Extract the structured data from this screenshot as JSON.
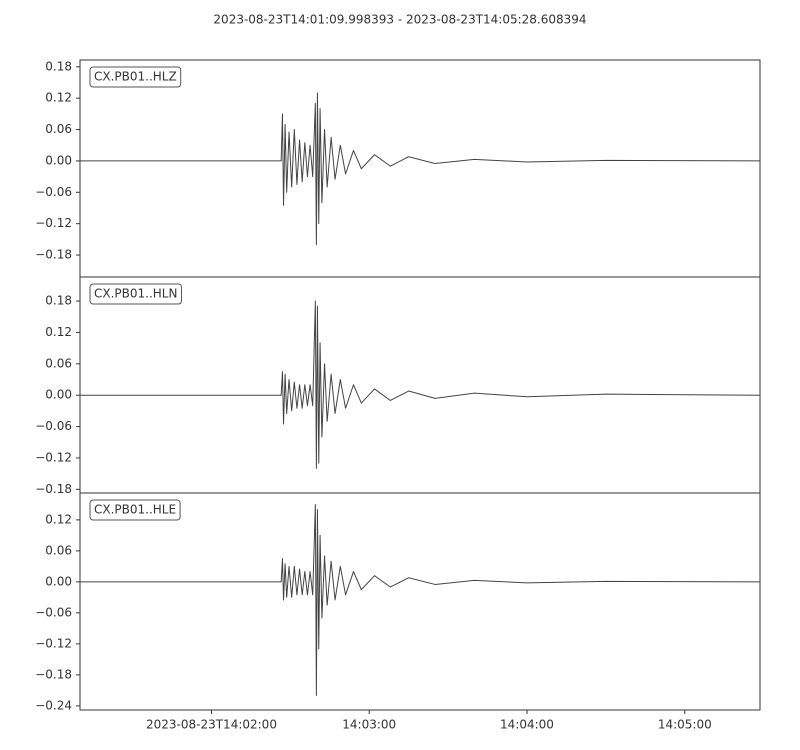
{
  "chart_data": [
    {
      "type": "line",
      "title": "2023-08-23T14:01:09.998393  -  2023-08-23T14:05:28.608394",
      "label": "CX.PB01..HLZ",
      "xlim": [
        "2023-08-23T14:01:09.998393",
        "2023-08-23T14:05:28.608394"
      ],
      "ylim": [
        -0.222,
        0.193
      ],
      "yticks": [
        {
          "value": -0.18,
          "label": "−0.18"
        },
        {
          "value": -0.12,
          "label": "−0.12"
        },
        {
          "value": -0.06,
          "label": "−0.06"
        },
        {
          "value": 0,
          "label": "0.00"
        },
        {
          "value": 0.06,
          "label": "0.06"
        },
        {
          "value": 0.12,
          "label": "0.12"
        },
        {
          "value": 0.18,
          "label": "0.18"
        }
      ],
      "series": [
        {
          "color": "#444444",
          "x": [
            "2023-08-23T14:01:10",
            "2023-08-23T14:02:26.5",
            "2023-08-23T14:02:27",
            "2023-08-23T14:02:27.4",
            "2023-08-23T14:02:28",
            "2023-08-23T14:02:28.6",
            "2023-08-23T14:02:29.5",
            "2023-08-23T14:02:30.5",
            "2023-08-23T14:02:31.5",
            "2023-08-23T14:02:32.5",
            "2023-08-23T14:02:33.5",
            "2023-08-23T14:02:34.5",
            "2023-08-23T14:02:35.5",
            "2023-08-23T14:02:36.5",
            "2023-08-23T14:02:37.5",
            "2023-08-23T14:02:38.5",
            "2023-08-23T14:02:39.5",
            "2023-08-23T14:02:39.9",
            "2023-08-23T14:02:40.3",
            "2023-08-23T14:02:40.8",
            "2023-08-23T14:02:41.3",
            "2023-08-23T14:02:42",
            "2023-08-23T14:02:43",
            "2023-08-23T14:02:44",
            "2023-08-23T14:02:45.5",
            "2023-08-23T14:02:47",
            "2023-08-23T14:02:49",
            "2023-08-23T14:02:51",
            "2023-08-23T14:02:54",
            "2023-08-23T14:02:57",
            "2023-08-23T14:03:02",
            "2023-08-23T14:03:08",
            "2023-08-23T14:03:15",
            "2023-08-23T14:03:25",
            "2023-08-23T14:03:40",
            "2023-08-23T14:04:00",
            "2023-08-23T14:04:30",
            "2023-08-23T14:05:28.6"
          ],
          "values": [
            0,
            0,
            0.09,
            -0.085,
            0.07,
            -0.06,
            0.055,
            -0.05,
            0.06,
            -0.045,
            0.04,
            -0.04,
            0.035,
            -0.03,
            0.03,
            -0.03,
            0.11,
            -0.16,
            0.13,
            -0.12,
            0.1,
            -0.08,
            0.06,
            -0.05,
            0.045,
            -0.035,
            0.03,
            -0.025,
            0.02,
            -0.015,
            0.012,
            -0.01,
            0.008,
            -0.005,
            0.003,
            -0.002,
            0.001,
            0
          ]
        }
      ]
    },
    {
      "type": "line",
      "label": "CX.PB01..HLN",
      "xlim": [
        "2023-08-23T14:01:09.998393",
        "2023-08-23T14:05:28.608394"
      ],
      "ylim": [
        -0.187,
        0.226
      ],
      "yticks": [
        {
          "value": -0.18,
          "label": "−0.18"
        },
        {
          "value": -0.12,
          "label": "−0.12"
        },
        {
          "value": -0.06,
          "label": "−0.06"
        },
        {
          "value": 0,
          "label": "0.00"
        },
        {
          "value": 0.06,
          "label": "0.06"
        },
        {
          "value": 0.12,
          "label": "0.12"
        },
        {
          "value": 0.18,
          "label": "0.18"
        }
      ],
      "series": [
        {
          "color": "#444444",
          "x": [
            "2023-08-23T14:01:10",
            "2023-08-23T14:02:26.5",
            "2023-08-23T14:02:27",
            "2023-08-23T14:02:27.4",
            "2023-08-23T14:02:28",
            "2023-08-23T14:02:28.6",
            "2023-08-23T14:02:29.5",
            "2023-08-23T14:02:30.5",
            "2023-08-23T14:02:31.5",
            "2023-08-23T14:02:32.5",
            "2023-08-23T14:02:33.5",
            "2023-08-23T14:02:34.5",
            "2023-08-23T14:02:35.5",
            "2023-08-23T14:02:36.5",
            "2023-08-23T14:02:37.5",
            "2023-08-23T14:02:38.5",
            "2023-08-23T14:02:39.5",
            "2023-08-23T14:02:39.9",
            "2023-08-23T14:02:40.3",
            "2023-08-23T14:02:40.8",
            "2023-08-23T14:02:41.3",
            "2023-08-23T14:02:42",
            "2023-08-23T14:02:43",
            "2023-08-23T14:02:44",
            "2023-08-23T14:02:45.5",
            "2023-08-23T14:02:47",
            "2023-08-23T14:02:49",
            "2023-08-23T14:02:51",
            "2023-08-23T14:02:54",
            "2023-08-23T14:02:57",
            "2023-08-23T14:03:02",
            "2023-08-23T14:03:08",
            "2023-08-23T14:03:15",
            "2023-08-23T14:03:25",
            "2023-08-23T14:03:40",
            "2023-08-23T14:04:00",
            "2023-08-23T14:04:30",
            "2023-08-23T14:05:28.6"
          ],
          "values": [
            0,
            0,
            0.045,
            -0.055,
            0.04,
            -0.035,
            0.03,
            -0.03,
            0.025,
            -0.025,
            0.02,
            -0.025,
            0.02,
            -0.02,
            0.02,
            -0.02,
            0.18,
            -0.14,
            0.17,
            -0.13,
            0.1,
            -0.08,
            0.06,
            -0.05,
            0.04,
            -0.035,
            0.03,
            -0.025,
            0.02,
            -0.015,
            0.012,
            -0.01,
            0.008,
            -0.006,
            0.004,
            -0.003,
            0.002,
            0
          ]
        }
      ]
    },
    {
      "type": "line",
      "label": "CX.PB01..HLE",
      "xlim": [
        "2023-08-23T14:01:09.998393",
        "2023-08-23T14:05:28.608394"
      ],
      "ylim": [
        -0.248,
        0.172
      ],
      "yticks": [
        {
          "value": -0.24,
          "label": "−0.24"
        },
        {
          "value": -0.18,
          "label": "−0.18"
        },
        {
          "value": -0.12,
          "label": "−0.12"
        },
        {
          "value": -0.06,
          "label": "−0.06"
        },
        {
          "value": 0,
          "label": "0.00"
        },
        {
          "value": 0.06,
          "label": "0.06"
        },
        {
          "value": 0.12,
          "label": "0.12"
        }
      ],
      "xticks": [
        "2023-08-23T14:02:00",
        {
          "value": "2023-08-23T14:03:00",
          "label": "14:03:00"
        },
        {
          "value": "2023-08-23T14:04:00",
          "label": "14:04:00"
        },
        {
          "value": "2023-08-23T14:05:00",
          "label": "14:05:00"
        }
      ],
      "series": [
        {
          "color": "#444444",
          "x": [
            "2023-08-23T14:01:10",
            "2023-08-23T14:02:26.5",
            "2023-08-23T14:02:27",
            "2023-08-23T14:02:27.4",
            "2023-08-23T14:02:28",
            "2023-08-23T14:02:28.6",
            "2023-08-23T14:02:29.5",
            "2023-08-23T14:02:30.5",
            "2023-08-23T14:02:31.5",
            "2023-08-23T14:02:32.5",
            "2023-08-23T14:02:33.5",
            "2023-08-23T14:02:34.5",
            "2023-08-23T14:02:35.5",
            "2023-08-23T14:02:36.5",
            "2023-08-23T14:02:37.5",
            "2023-08-23T14:02:38.5",
            "2023-08-23T14:02:39.5",
            "2023-08-23T14:02:39.9",
            "2023-08-23T14:02:40.3",
            "2023-08-23T14:02:40.8",
            "2023-08-23T14:02:41.3",
            "2023-08-23T14:02:42",
            "2023-08-23T14:02:43",
            "2023-08-23T14:02:44",
            "2023-08-23T14:02:45.5",
            "2023-08-23T14:02:47",
            "2023-08-23T14:02:49",
            "2023-08-23T14:02:51",
            "2023-08-23T14:02:54",
            "2023-08-23T14:02:57",
            "2023-08-23T14:03:02",
            "2023-08-23T14:03:08",
            "2023-08-23T14:03:15",
            "2023-08-23T14:03:25",
            "2023-08-23T14:03:40",
            "2023-08-23T14:04:00",
            "2023-08-23T14:04:30",
            "2023-08-23T14:05:28.6"
          ],
          "values": [
            0,
            0,
            0.045,
            -0.035,
            0.035,
            -0.03,
            0.03,
            -0.03,
            0.03,
            -0.025,
            0.025,
            -0.025,
            0.02,
            -0.025,
            0.02,
            -0.025,
            0.15,
            -0.22,
            0.14,
            -0.13,
            0.09,
            -0.07,
            0.05,
            -0.045,
            0.04,
            -0.035,
            0.03,
            -0.025,
            0.02,
            -0.015,
            0.012,
            -0.01,
            0.008,
            -0.005,
            0.003,
            -0.002,
            0.001,
            0
          ]
        }
      ]
    }
  ]
}
